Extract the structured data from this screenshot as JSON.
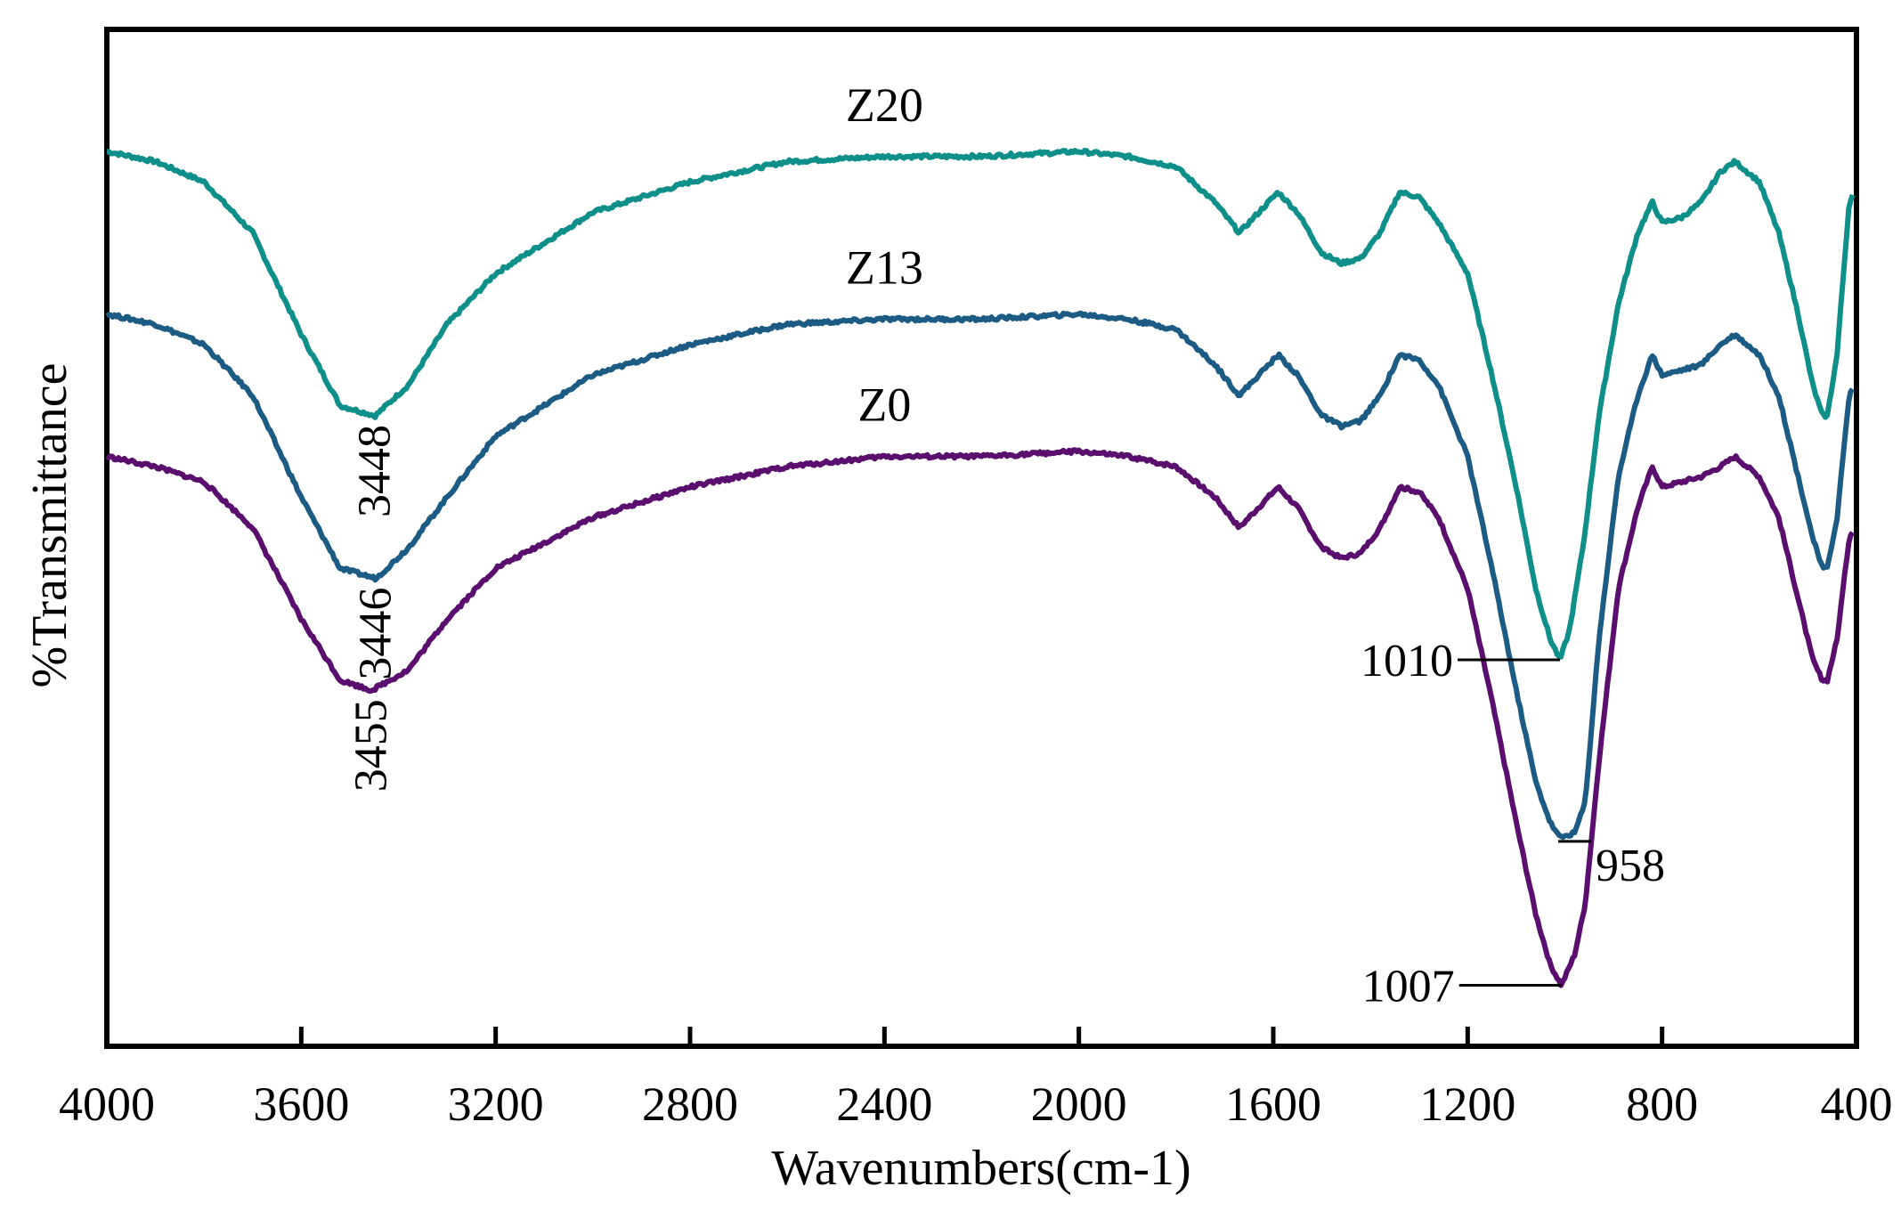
{
  "chart_data": {
    "type": "line",
    "title": "",
    "xlabel": "Wavenumbers(cm-1)",
    "ylabel": "%Transmittance",
    "xlim": [
      4000,
      400
    ],
    "x_reversed": true,
    "ylim": [
      0,
      100
    ],
    "grid": false,
    "xticks": [
      "4000",
      "3600",
      "3200",
      "2800",
      "2400",
      "2000",
      "1600",
      "1200",
      "800",
      "400"
    ],
    "series": [
      {
        "name": "Z20",
        "color": "#0f8f8a",
        "points": [
          [
            4000,
            88
          ],
          [
            3900,
            87
          ],
          [
            3800,
            85
          ],
          [
            3700,
            80
          ],
          [
            3600,
            70
          ],
          [
            3520,
            63
          ],
          [
            3448,
            62
          ],
          [
            3380,
            65
          ],
          [
            3300,
            71
          ],
          [
            3200,
            76
          ],
          [
            3000,
            82
          ],
          [
            2800,
            85
          ],
          [
            2600,
            87
          ],
          [
            2400,
            87.5
          ],
          [
            2200,
            87.5
          ],
          [
            2000,
            88
          ],
          [
            1900,
            87.5
          ],
          [
            1800,
            86.5
          ],
          [
            1720,
            83
          ],
          [
            1670,
            80
          ],
          [
            1630,
            82
          ],
          [
            1590,
            84
          ],
          [
            1550,
            82
          ],
          [
            1500,
            78
          ],
          [
            1460,
            77
          ],
          [
            1420,
            77.5
          ],
          [
            1380,
            80
          ],
          [
            1340,
            84
          ],
          [
            1300,
            83.5
          ],
          [
            1260,
            81
          ],
          [
            1200,
            76
          ],
          [
            1150,
            66
          ],
          [
            1100,
            55
          ],
          [
            1060,
            45
          ],
          [
            1030,
            40
          ],
          [
            1010,
            38
          ],
          [
            990,
            41
          ],
          [
            960,
            50
          ],
          [
            930,
            62
          ],
          [
            890,
            73
          ],
          [
            850,
            80
          ],
          [
            820,
            83
          ],
          [
            800,
            81
          ],
          [
            760,
            81.5
          ],
          [
            720,
            83
          ],
          [
            680,
            86
          ],
          [
            650,
            87
          ],
          [
            600,
            85
          ],
          [
            560,
            80
          ],
          [
            520,
            72
          ],
          [
            490,
            65
          ],
          [
            470,
            62
          ],
          [
            460,
            62
          ],
          [
            440,
            68
          ],
          [
            415,
            83
          ],
          [
            405,
            84
          ]
        ]
      },
      {
        "name": "Z13",
        "color": "#1c5b84",
        "points": [
          [
            4000,
            72
          ],
          [
            3900,
            71
          ],
          [
            3800,
            69
          ],
          [
            3700,
            64
          ],
          [
            3600,
            54
          ],
          [
            3520,
            47
          ],
          [
            3446,
            46
          ],
          [
            3380,
            49
          ],
          [
            3300,
            54
          ],
          [
            3200,
            60
          ],
          [
            3000,
            66
          ],
          [
            2800,
            69
          ],
          [
            2600,
            71
          ],
          [
            2400,
            71.5
          ],
          [
            2200,
            71.5
          ],
          [
            2000,
            72
          ],
          [
            1900,
            71.5
          ],
          [
            1800,
            70.5
          ],
          [
            1720,
            67
          ],
          [
            1670,
            64
          ],
          [
            1630,
            66
          ],
          [
            1590,
            68
          ],
          [
            1550,
            66
          ],
          [
            1500,
            62
          ],
          [
            1460,
            61
          ],
          [
            1420,
            61.5
          ],
          [
            1380,
            64
          ],
          [
            1340,
            68
          ],
          [
            1300,
            67.5
          ],
          [
            1260,
            65
          ],
          [
            1200,
            58
          ],
          [
            1150,
            47
          ],
          [
            1100,
            35
          ],
          [
            1060,
            26
          ],
          [
            1030,
            22
          ],
          [
            1010,
            20.5
          ],
          [
            980,
            21
          ],
          [
            958,
            24
          ],
          [
            930,
            40
          ],
          [
            890,
            56
          ],
          [
            850,
            64
          ],
          [
            820,
            68
          ],
          [
            800,
            66
          ],
          [
            760,
            66.5
          ],
          [
            720,
            67
          ],
          [
            680,
            69
          ],
          [
            650,
            70
          ],
          [
            600,
            68
          ],
          [
            560,
            64
          ],
          [
            520,
            56
          ],
          [
            490,
            50
          ],
          [
            470,
            47
          ],
          [
            460,
            47
          ],
          [
            440,
            52
          ],
          [
            415,
            64
          ],
          [
            405,
            65
          ]
        ]
      },
      {
        "name": "Z0",
        "color": "#5a0f6e",
        "points": [
          [
            4000,
            58
          ],
          [
            3900,
            57
          ],
          [
            3800,
            55.5
          ],
          [
            3700,
            51
          ],
          [
            3600,
            42
          ],
          [
            3520,
            36
          ],
          [
            3455,
            35
          ],
          [
            3380,
            37
          ],
          [
            3300,
            42
          ],
          [
            3200,
            47
          ],
          [
            3000,
            52
          ],
          [
            2800,
            55
          ],
          [
            2600,
            57
          ],
          [
            2400,
            58
          ],
          [
            2200,
            58
          ],
          [
            2000,
            58.5
          ],
          [
            1900,
            58
          ],
          [
            1800,
            57
          ],
          [
            1720,
            54
          ],
          [
            1670,
            51
          ],
          [
            1630,
            53
          ],
          [
            1590,
            55
          ],
          [
            1550,
            53
          ],
          [
            1500,
            49
          ],
          [
            1460,
            48
          ],
          [
            1420,
            48.5
          ],
          [
            1380,
            51
          ],
          [
            1340,
            55
          ],
          [
            1300,
            54.5
          ],
          [
            1260,
            52
          ],
          [
            1200,
            45
          ],
          [
            1150,
            34
          ],
          [
            1100,
            22
          ],
          [
            1060,
            13
          ],
          [
            1030,
            8
          ],
          [
            1007,
            6
          ],
          [
            980,
            9
          ],
          [
            958,
            14
          ],
          [
            930,
            28
          ],
          [
            890,
            45
          ],
          [
            850,
            53
          ],
          [
            820,
            57
          ],
          [
            800,
            55
          ],
          [
            760,
            55.5
          ],
          [
            720,
            56
          ],
          [
            680,
            57
          ],
          [
            650,
            58
          ],
          [
            600,
            56
          ],
          [
            560,
            52
          ],
          [
            520,
            44
          ],
          [
            490,
            38
          ],
          [
            470,
            36
          ],
          [
            460,
            36
          ],
          [
            440,
            40
          ],
          [
            415,
            50
          ],
          [
            405,
            51
          ]
        ]
      }
    ],
    "series_labels": [
      {
        "text": "Z20",
        "series": "Z20"
      },
      {
        "text": "Z13",
        "series": "Z13"
      },
      {
        "text": "Z0",
        "series": "Z0"
      }
    ],
    "annotations": [
      {
        "text": "3448",
        "series": "Z20",
        "x": 3448,
        "rotated": true
      },
      {
        "text": "3446",
        "series": "Z13",
        "x": 3446,
        "rotated": true
      },
      {
        "text": "3455",
        "series": "Z0",
        "x": 3455,
        "rotated": true
      },
      {
        "text": "1010",
        "series": "Z20",
        "x": 1010,
        "leader": "left"
      },
      {
        "text": "958",
        "series": "Z13",
        "x": 1010,
        "leader": "right"
      },
      {
        "text": "1007",
        "series": "Z0",
        "x": 1007,
        "leader": "left"
      }
    ]
  }
}
